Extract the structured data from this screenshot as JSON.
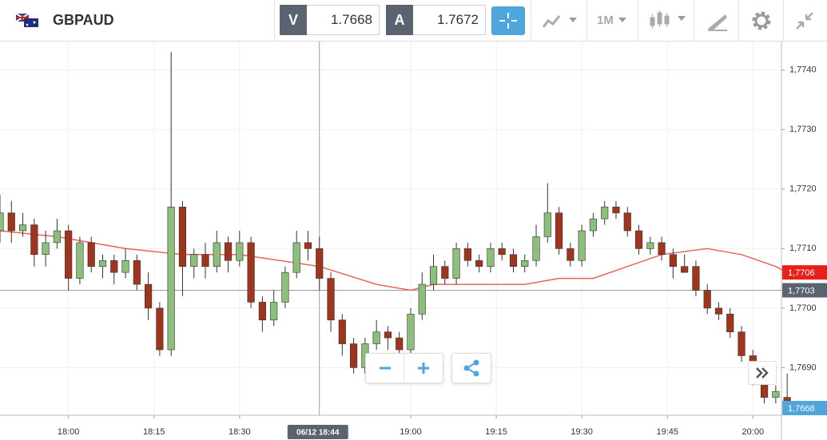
{
  "toolbar": {
    "symbol": "GBPAUD",
    "bid_tag": "V",
    "bid": "1.7668",
    "ask_tag": "A",
    "ask": "1.7672",
    "timeframe": "1M"
  },
  "chart_data": {
    "type": "candlestick",
    "x": [
      1068,
      1070,
      1072,
      1074,
      1076,
      1078,
      1080,
      1082,
      1084,
      1086,
      1088,
      1090,
      1092,
      1094,
      1096,
      1098,
      1100,
      1102,
      1104,
      1106,
      1108,
      1110,
      1112,
      1114,
      1116,
      1118,
      1120,
      1122,
      1124,
      1126,
      1128,
      1130,
      1132,
      1134,
      1136,
      1138,
      1140,
      1142,
      1144,
      1146,
      1148,
      1150,
      1152,
      1154,
      1156,
      1158,
      1160,
      1162,
      1164,
      1166,
      1168,
      1170,
      1172,
      1174,
      1176,
      1178,
      1180,
      1182,
      1184,
      1186,
      1188,
      1190,
      1192,
      1194,
      1196,
      1198,
      1200,
      1202,
      1204,
      1206
    ],
    "candles": [
      [
        1.7713,
        1.7719,
        1.7711,
        1.7716
      ],
      [
        1.7716,
        1.7718,
        1.7711,
        1.7713
      ],
      [
        1.7713,
        1.7716,
        1.7712,
        1.7714
      ],
      [
        1.7714,
        1.7715,
        1.7707,
        1.7709
      ],
      [
        1.7709,
        1.7713,
        1.7707,
        1.7711
      ],
      [
        1.7711,
        1.7715,
        1.771,
        1.7713
      ],
      [
        1.7713,
        1.7714,
        1.7703,
        1.7705
      ],
      [
        1.7705,
        1.7712,
        1.7704,
        1.7711
      ],
      [
        1.7711,
        1.7712,
        1.7706,
        1.7707
      ],
      [
        1.7707,
        1.7709,
        1.7705,
        1.7708
      ],
      [
        1.7708,
        1.7709,
        1.7704,
        1.7706
      ],
      [
        1.7706,
        1.771,
        1.7705,
        1.7708
      ],
      [
        1.7708,
        1.7709,
        1.7703,
        1.7704
      ],
      [
        1.7704,
        1.7706,
        1.7698,
        1.77
      ],
      [
        1.77,
        1.7701,
        1.7692,
        1.7693
      ],
      [
        1.7693,
        1.7743,
        1.7692,
        1.7717
      ],
      [
        1.7717,
        1.7718,
        1.7702,
        1.7707
      ],
      [
        1.7707,
        1.771,
        1.7705,
        1.7709
      ],
      [
        1.7709,
        1.7711,
        1.7705,
        1.7707
      ],
      [
        1.7707,
        1.7713,
        1.7706,
        1.7711
      ],
      [
        1.7711,
        1.7712,
        1.7706,
        1.7708
      ],
      [
        1.7708,
        1.7713,
        1.7707,
        1.7711
      ],
      [
        1.7711,
        1.7712,
        1.77,
        1.7701
      ],
      [
        1.7701,
        1.7702,
        1.7696,
        1.7698
      ],
      [
        1.7698,
        1.7703,
        1.7697,
        1.7701
      ],
      [
        1.7701,
        1.7707,
        1.77,
        1.7706
      ],
      [
        1.7706,
        1.7713,
        1.7705,
        1.7711
      ],
      [
        1.7711,
        1.7713,
        1.7708,
        1.771
      ],
      [
        1.771,
        1.7712,
        1.7703,
        1.7705
      ],
      [
        1.7705,
        1.7706,
        1.7696,
        1.7698
      ],
      [
        1.7698,
        1.7699,
        1.7692,
        1.7694
      ],
      [
        1.7694,
        1.7695,
        1.7689,
        1.769
      ],
      [
        1.769,
        1.7695,
        1.7689,
        1.7694
      ],
      [
        1.7694,
        1.7698,
        1.7693,
        1.7696
      ],
      [
        1.7696,
        1.7697,
        1.7693,
        1.7695
      ],
      [
        1.7695,
        1.7696,
        1.7692,
        1.7693
      ],
      [
        1.7693,
        1.77,
        1.7692,
        1.7699
      ],
      [
        1.7699,
        1.7706,
        1.7698,
        1.7704
      ],
      [
        1.7704,
        1.7709,
        1.7703,
        1.7707
      ],
      [
        1.7707,
        1.7708,
        1.7704,
        1.7705
      ],
      [
        1.7705,
        1.7711,
        1.7704,
        1.771
      ],
      [
        1.771,
        1.7711,
        1.7707,
        1.7708
      ],
      [
        1.7708,
        1.7709,
        1.7706,
        1.7707
      ],
      [
        1.7707,
        1.7711,
        1.7706,
        1.771
      ],
      [
        1.771,
        1.7711,
        1.7708,
        1.7709
      ],
      [
        1.7709,
        1.771,
        1.7706,
        1.7707
      ],
      [
        1.7707,
        1.7709,
        1.7706,
        1.7708
      ],
      [
        1.7708,
        1.7714,
        1.7707,
        1.7712
      ],
      [
        1.7712,
        1.7721,
        1.7711,
        1.7716
      ],
      [
        1.7716,
        1.7717,
        1.7709,
        1.771
      ],
      [
        1.771,
        1.7711,
        1.7707,
        1.7708
      ],
      [
        1.7708,
        1.7714,
        1.7707,
        1.7713
      ],
      [
        1.7713,
        1.7716,
        1.7712,
        1.7715
      ],
      [
        1.7715,
        1.7718,
        1.7714,
        1.7717
      ],
      [
        1.7717,
        1.7718,
        1.7715,
        1.7716
      ],
      [
        1.7716,
        1.7717,
        1.7712,
        1.7713
      ],
      [
        1.7713,
        1.7714,
        1.7709,
        1.771
      ],
      [
        1.771,
        1.7712,
        1.7709,
        1.7711
      ],
      [
        1.7711,
        1.7712,
        1.7708,
        1.7709
      ],
      [
        1.7709,
        1.771,
        1.7705,
        1.7707
      ],
      [
        1.7707,
        1.7709,
        1.7706,
        1.7706
      ],
      [
        1.7707,
        1.7708,
        1.7702,
        1.7703
      ],
      [
        1.7703,
        1.7704,
        1.7699,
        1.77
      ],
      [
        1.77,
        1.7701,
        1.7698,
        1.7699
      ],
      [
        1.7699,
        1.77,
        1.7695,
        1.7696
      ],
      [
        1.7696,
        1.7697,
        1.7691,
        1.7692
      ],
      [
        1.7692,
        1.7693,
        1.7687,
        1.7688
      ],
      [
        1.7688,
        1.7689,
        1.7684,
        1.7685
      ],
      [
        1.7685,
        1.7687,
        1.7684,
        1.7686
      ],
      [
        1.7685,
        1.7689,
        1.7682,
        1.7683
      ]
    ],
    "ma_x": [
      1068,
      1078,
      1090,
      1100,
      1110,
      1124,
      1134,
      1140,
      1144,
      1160,
      1166,
      1172,
      1178,
      1184,
      1192,
      1198,
      1204,
      1206
    ],
    "ma": [
      1.7713,
      1.7712,
      1.771,
      1.7709,
      1.7709,
      1.7707,
      1.7704,
      1.7703,
      1.7704,
      1.7704,
      1.7705,
      1.7705,
      1.7707,
      1.7709,
      1.771,
      1.7709,
      1.7707,
      1.7706
    ],
    "xlim": [
      1068,
      1205
    ],
    "xticks": [
      {
        "value": 1080,
        "label": "18:00"
      },
      {
        "value": 1095,
        "label": "18:15"
      },
      {
        "value": 1110,
        "label": "18:30"
      },
      {
        "value": 1140,
        "label": "19:00"
      },
      {
        "value": 1155,
        "label": "19:15"
      },
      {
        "value": 1170,
        "label": "19:30"
      },
      {
        "value": 1185,
        "label": "19:45"
      },
      {
        "value": 1200,
        "label": "20:00"
      }
    ],
    "ylim": [
      1.7682,
      1.77448
    ],
    "yticks": [
      {
        "value": 1.769,
        "label": "1,7690"
      },
      {
        "value": 1.77,
        "label": "1,7700"
      },
      {
        "value": 1.771,
        "label": "1,7710"
      },
      {
        "value": 1.772,
        "label": "1,7720"
      },
      {
        "value": 1.773,
        "label": "1,7730"
      },
      {
        "value": 1.774,
        "label": "1,7740"
      }
    ],
    "price_lines": [
      {
        "value": 1.7706,
        "label": "1,7706",
        "color": "#e8201a"
      },
      {
        "value": 1.7703,
        "label": "1,7703",
        "color": "#5c6370"
      },
      {
        "value": 1.7668,
        "label": "1,7668",
        "color": "#4ea6dc"
      }
    ],
    "crosshair": {
      "value": 1124,
      "label": "06/12 18:44"
    },
    "up_color": "#8cbf7c",
    "down_color": "#a0341c",
    "ma_color": "#e8645a",
    "grid": true
  }
}
